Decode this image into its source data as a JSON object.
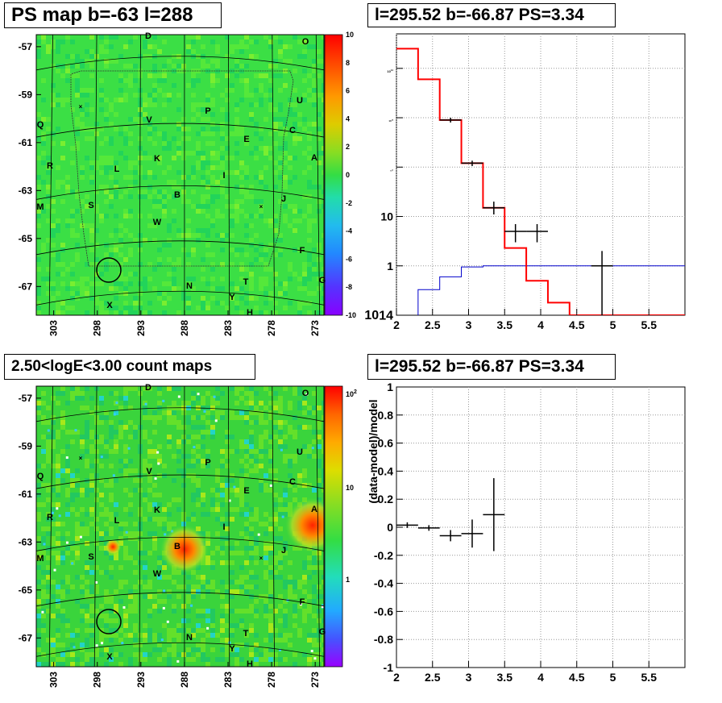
{
  "panels": {
    "top_left": {
      "title": "PS map b=-63 l=288",
      "y_ticks": [
        "-57",
        "-59",
        "-61",
        "-63",
        "-65",
        "-67"
      ],
      "x_ticks": [
        "303",
        "298",
        "293",
        "288",
        "283",
        "278",
        "273"
      ],
      "colorbar_ticks": [
        "10",
        "8",
        "6",
        "4",
        "2",
        "0",
        "-2",
        "-4",
        "-6",
        "-8",
        "-10"
      ],
      "labels": [
        "D",
        "O",
        "U",
        "Q",
        "V",
        "P",
        "C",
        "E",
        "A",
        "R",
        "L",
        "K",
        "I",
        "M",
        "S",
        "B",
        "J",
        "W",
        "F",
        "N",
        "T",
        "G",
        "Y",
        "X",
        "H"
      ]
    },
    "top_right": {
      "title": "l=295.52 b=-66.87 PS=3.34",
      "x_ticks": [
        "2",
        "2.5",
        "3",
        "3.5",
        "4",
        "4.5",
        "5",
        "5.5"
      ],
      "y_ticks": [
        "10^4",
        "10^3",
        "10^2",
        "10",
        "1",
        "10^-1"
      ]
    },
    "bottom_left": {
      "title": "2.50<logE<3.00 count maps",
      "y_ticks": [
        "-57",
        "-59",
        "-61",
        "-63",
        "-65",
        "-67"
      ],
      "x_ticks": [
        "303",
        "298",
        "293",
        "288",
        "283",
        "278",
        "273"
      ],
      "colorbar_ticks": [
        "10^2",
        "10",
        "1"
      ],
      "labels": [
        "D",
        "O",
        "U",
        "Q",
        "V",
        "P",
        "C",
        "E",
        "A",
        "R",
        "L",
        "K",
        "I",
        "M",
        "S",
        "B",
        "J",
        "W",
        "F",
        "N",
        "T",
        "G",
        "Y",
        "X",
        "H"
      ]
    },
    "bottom_right": {
      "title": "l=295.52 b=-66.87 PS=3.34",
      "ylabel": "(data-model)/model",
      "x_ticks": [
        "2",
        "2.5",
        "3",
        "3.5",
        "4",
        "4.5",
        "5",
        "5.5"
      ],
      "y_ticks": [
        "1",
        "0.8",
        "0.6",
        "0.4",
        "0.2",
        "0",
        "-0.2",
        "-0.4",
        "-0.6",
        "-0.8",
        "-1"
      ]
    }
  },
  "colors": {
    "map_green": "#33dd44",
    "model_red": "#ff0000",
    "bkg_blue": "#0000cc",
    "data_black": "#000000"
  },
  "chart_data": [
    {
      "type": "heatmap",
      "title": "PS map b=-63 l=288",
      "x_range": [
        305,
        272
      ],
      "y_range": [
        -68.2,
        -56.5
      ],
      "zlim": [
        -10,
        10
      ],
      "source_labels": [
        "D",
        "O",
        "U",
        "Q",
        "V",
        "P",
        "C",
        "E",
        "A",
        "R",
        "L",
        "K",
        "I",
        "M",
        "S",
        "B",
        "J",
        "W",
        "F",
        "N",
        "T",
        "G",
        "Y",
        "X",
        "H"
      ]
    },
    {
      "type": "line",
      "title": "l=295.52 b=-66.87 PS=3.34",
      "log_y": true,
      "xlim": [
        2,
        6
      ],
      "ylim": [
        0.1,
        50000
      ],
      "series": [
        {
          "color": "red",
          "bin_edges": [
            2.0,
            2.3,
            2.6,
            2.9,
            3.2,
            3.5,
            3.8,
            4.1,
            4.4,
            4.7,
            5.0,
            5.3,
            5.6,
            6.0
          ],
          "values": [
            25000,
            6000,
            900,
            120,
            15,
            2.3,
            0.5,
            0.18,
            0.1,
            0.1,
            0.1,
            0.1,
            0.1
          ]
        },
        {
          "color": "blue",
          "bin_edges": [
            2.0,
            2.3,
            2.6,
            2.9,
            3.2,
            3.5,
            3.8,
            4.1,
            4.4,
            4.7,
            5.0,
            5.3,
            5.6,
            6.0
          ],
          "values": [
            0.05,
            0.33,
            0.6,
            0.95,
            1.0,
            1.0,
            1.0,
            1.0,
            1.0,
            1.0,
            1.0,
            1.0,
            1.0
          ]
        },
        {
          "color": "black",
          "x": [
            2.75,
            3.05,
            3.35,
            3.65,
            3.95,
            4.85
          ],
          "x_err": [
            0.15,
            0.15,
            0.15,
            0.15,
            0.15,
            0.15
          ],
          "y": [
            900,
            120,
            15,
            5,
            5,
            1
          ],
          "y_lo": [
            800,
            105,
            11,
            3,
            3,
            0.1
          ],
          "y_hi": [
            1000,
            135,
            20,
            7,
            7,
            2
          ]
        }
      ]
    },
    {
      "type": "heatmap",
      "title": "2.50<logE<3.00 count maps",
      "x_range": [
        305,
        272
      ],
      "y_range": [
        -68.2,
        -56.5
      ],
      "log_z": true,
      "zlim": [
        0.5,
        150
      ],
      "source_labels": [
        "D",
        "O",
        "U",
        "Q",
        "V",
        "P",
        "C",
        "E",
        "A",
        "R",
        "L",
        "K",
        "I",
        "M",
        "S",
        "B",
        "J",
        "W",
        "F",
        "N",
        "T",
        "G",
        "Y",
        "X",
        "H"
      ]
    },
    {
      "type": "scatter",
      "title": "l=295.52 b=-66.87 PS=3.34",
      "ylabel": "(data-model)/model",
      "xlim": [
        2,
        6
      ],
      "ylim": [
        -1,
        1
      ],
      "x": [
        2.15,
        2.45,
        2.75,
        3.05,
        3.35
      ],
      "x_err": [
        0.15,
        0.15,
        0.15,
        0.15,
        0.15
      ],
      "y": [
        0.015,
        -0.005,
        -0.06,
        -0.045,
        0.09
      ],
      "y_err": [
        0.02,
        0.02,
        0.04,
        0.1,
        0.26
      ]
    }
  ]
}
